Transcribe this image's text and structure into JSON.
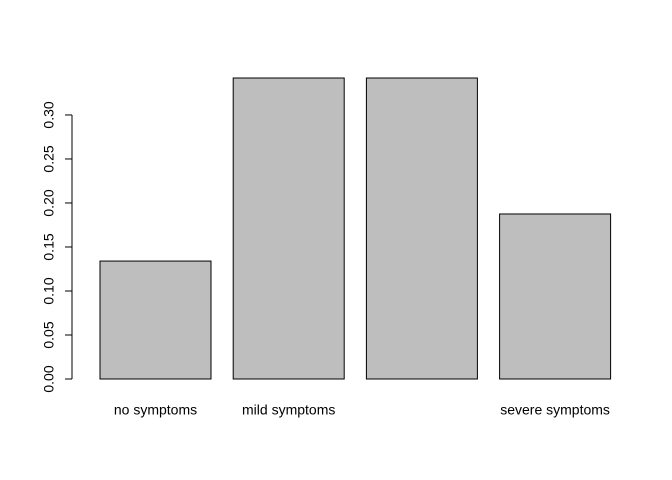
{
  "chart_data": {
    "type": "bar",
    "categories": [
      "no symptoms",
      "mild symptoms",
      null,
      "severe symptoms"
    ],
    "values": [
      0.134,
      0.342,
      0.342,
      0.1875
    ],
    "color": "#bebebe",
    "ylim": [
      0,
      0.342
    ],
    "yticks": [
      {
        "value": 0,
        "label": "0.00"
      },
      {
        "value": 0.05,
        "label": "0.05"
      },
      {
        "value": 0.1,
        "label": "0.10"
      },
      {
        "value": 0.15,
        "label": "0.15"
      },
      {
        "value": 0.2,
        "label": "0.20"
      },
      {
        "value": 0.25,
        "label": "0.25"
      },
      {
        "value": 0.3,
        "label": "0.30"
      }
    ]
  }
}
